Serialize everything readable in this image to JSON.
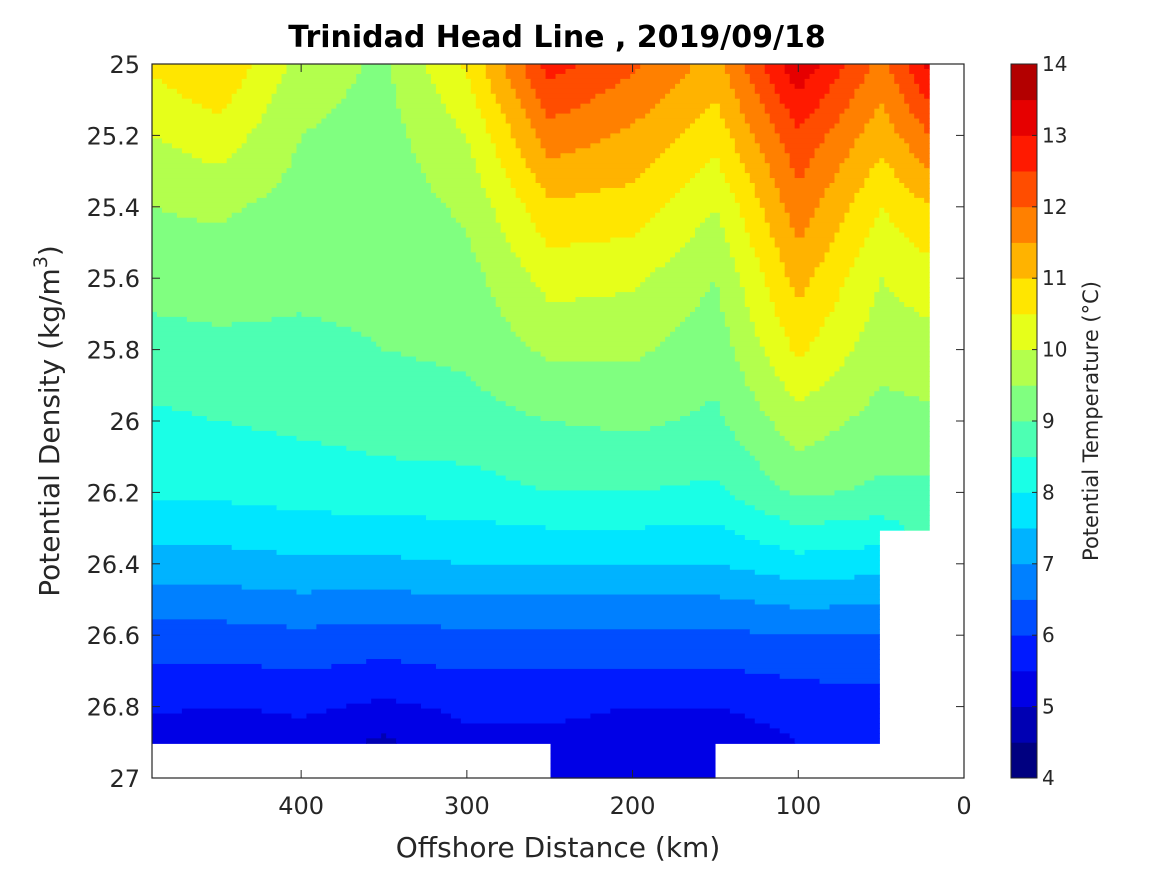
{
  "chart_data": {
    "type": "heatmap",
    "title": "Trinidad Head Line , 2019/09/18",
    "xlabel": "Offshore Distance (km)",
    "ylabel": "Potential Density (kg/m",
    "ylabel_sup": "3",
    "ylabel_end": ")",
    "colorbar_label": "Potential Temperature (°C)",
    "xlim": [
      490,
      0
    ],
    "ylim": [
      25,
      27
    ],
    "x_reversed": true,
    "y_reversed": true,
    "x_ticks": [
      400,
      300,
      200,
      100,
      0
    ],
    "x_tick_labels": [
      "400",
      "300",
      "200",
      "100",
      "0"
    ],
    "y_ticks": [
      25,
      25.2,
      25.4,
      25.6,
      25.8,
      26,
      26.2,
      26.4,
      26.6,
      26.8,
      27
    ],
    "y_tick_labels": [
      "25",
      "25.2",
      "25.4",
      "25.6",
      "25.8",
      "26",
      "26.2",
      "26.4",
      "26.6",
      "26.8",
      "27"
    ],
    "colorbar_range": [
      4,
      14
    ],
    "colorbar_ticks": [
      4,
      5,
      6,
      7,
      8,
      9,
      10,
      11,
      12,
      13,
      14
    ],
    "colorbar_tick_labels": [
      "4",
      "5",
      "6",
      "7",
      "8",
      "9",
      "10",
      "11",
      "12",
      "13",
      "14"
    ],
    "levels": [
      4,
      4.5,
      5,
      5.5,
      6,
      6.5,
      7,
      7.5,
      8,
      8.5,
      9,
      9.5,
      10,
      10.5,
      11,
      11.5,
      12,
      12.5,
      13,
      13.5,
      14
    ],
    "colormap": [
      "#000080",
      "#0000b3",
      "#0000e6",
      "#001aff",
      "#004dff",
      "#0080ff",
      "#00b3ff",
      "#00e6ff",
      "#1affe6",
      "#4dffb3",
      "#80ff80",
      "#b3ff4d",
      "#e6ff1a",
      "#ffe600",
      "#ffb300",
      "#ff8000",
      "#ff4d00",
      "#ff1a00",
      "#e60000",
      "#b30000"
    ],
    "temperature_profiles": [
      {
        "x": 490,
        "density": [
          25.0,
          25.2,
          25.4,
          25.6,
          25.8,
          26.0,
          26.2,
          26.4,
          26.6,
          26.8,
          26.9
        ],
        "temperature": [
          10.6,
          10.0,
          9.5,
          9.2,
          8.8,
          8.4,
          8.1,
          7.3,
          6.3,
          5.6,
          5.2
        ]
      },
      {
        "x": 450,
        "density": [
          25.0,
          25.2,
          25.4,
          25.6,
          25.8,
          26.0,
          26.2,
          26.4,
          26.6,
          26.8,
          26.9
        ],
        "temperature": [
          11.0,
          10.3,
          9.6,
          9.2,
          8.9,
          8.5,
          8.1,
          7.3,
          6.3,
          5.5,
          5.0
        ]
      },
      {
        "x": 400,
        "density": [
          25.0,
          25.2,
          25.4,
          25.6,
          25.8,
          26.0,
          26.2,
          26.4,
          26.6,
          26.8,
          26.9
        ],
        "temperature": [
          9.8,
          9.5,
          9.3,
          9.1,
          8.9,
          8.6,
          8.2,
          7.4,
          6.4,
          5.6,
          5.3
        ]
      },
      {
        "x": 350,
        "density": [
          25.0,
          25.2,
          25.4,
          25.6,
          25.8,
          26.0,
          26.2,
          26.4,
          26.6,
          26.8,
          26.9
        ],
        "temperature": [
          9.4,
          9.3,
          9.2,
          9.1,
          9.0,
          8.7,
          8.3,
          7.4,
          6.3,
          5.4,
          4.9
        ]
      },
      {
        "x": 300,
        "density": [
          25.0,
          25.2,
          25.4,
          25.6,
          25.8,
          26.0,
          26.2,
          26.4,
          26.6,
          26.8,
          26.9
        ],
        "temperature": [
          10.6,
          10.0,
          9.6,
          9.3,
          9.1,
          8.8,
          8.3,
          7.5,
          6.4,
          5.6,
          5.4
        ]
      },
      {
        "x": 250,
        "density": [
          25.0,
          25.2,
          25.4,
          25.6,
          25.8,
          26.0,
          26.2,
          26.4,
          26.6,
          26.8,
          26.9,
          27.0
        ],
        "temperature": [
          12.7,
          11.8,
          10.9,
          10.2,
          9.6,
          9.0,
          8.5,
          7.5,
          6.4,
          5.6,
          5.4,
          5.3
        ]
      },
      {
        "x": 200,
        "density": [
          25.0,
          25.2,
          25.4,
          25.6,
          25.8,
          26.0,
          26.2,
          26.4,
          26.6,
          26.8,
          26.9,
          27.0
        ],
        "temperature": [
          12.1,
          11.4,
          10.8,
          10.1,
          9.6,
          9.1,
          8.5,
          7.5,
          6.4,
          5.5,
          5.3,
          5.2
        ]
      },
      {
        "x": 150,
        "density": [
          25.0,
          25.2,
          25.4,
          25.6,
          25.8,
          26.0,
          26.2,
          26.4,
          26.6,
          26.8,
          26.9,
          27.0
        ],
        "temperature": [
          11.3,
          10.7,
          10.0,
          9.5,
          9.2,
          8.9,
          8.4,
          7.5,
          6.4,
          5.5,
          5.2,
          5.1
        ]
      },
      {
        "x": 100,
        "density": [
          25.0,
          25.2,
          25.4,
          25.6,
          25.8,
          26.0,
          26.2,
          26.4,
          26.6,
          26.8,
          26.9
        ],
        "temperature": [
          13.4,
          12.4,
          11.8,
          11.2,
          10.6,
          9.8,
          9.1,
          7.8,
          6.5,
          5.7,
          5.5
        ]
      },
      {
        "x": 50,
        "density": [
          25.0,
          25.2,
          25.4,
          25.6,
          25.8,
          26.0,
          26.2,
          26.4,
          26.6,
          26.8,
          26.9
        ],
        "temperature": [
          11.8,
          11.2,
          10.5,
          10.0,
          9.7,
          9.3,
          8.9,
          7.7,
          6.5,
          5.8,
          5.6
        ]
      },
      {
        "x": 20,
        "density": [
          25.0,
          25.2,
          25.4,
          25.6,
          25.8,
          26.0,
          26.2,
          26.3
        ],
        "temperature": [
          13.2,
          12.0,
          11.0,
          10.3,
          9.8,
          9.4,
          8.9,
          8.7
        ]
      }
    ]
  }
}
